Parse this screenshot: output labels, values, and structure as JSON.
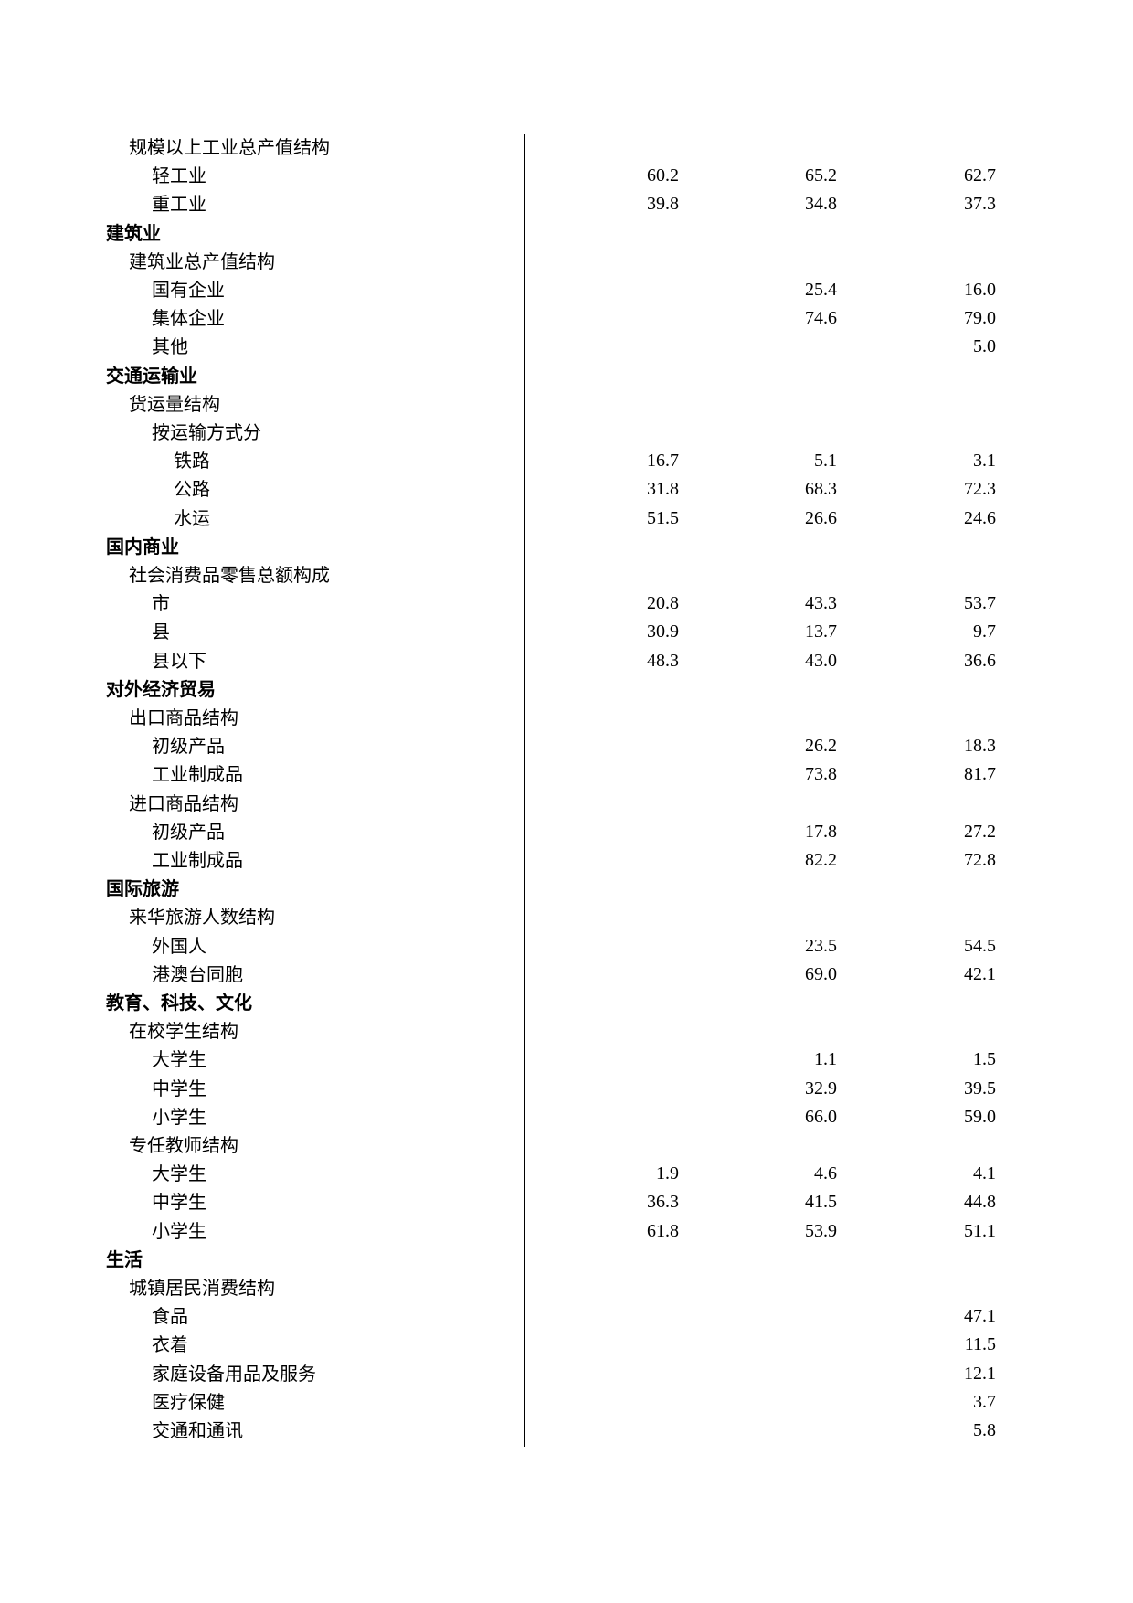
{
  "rows": [
    {
      "level": 1,
      "label": "规模以上工业总产值结构",
      "values": [
        "",
        "",
        ""
      ]
    },
    {
      "level": 2,
      "label": "轻工业",
      "values": [
        "60.2",
        "65.2",
        "62.7"
      ]
    },
    {
      "level": 2,
      "label": "重工业",
      "values": [
        "39.8",
        "34.8",
        "37.3"
      ]
    },
    {
      "level": 0,
      "label": "建筑业",
      "values": [
        "",
        "",
        ""
      ]
    },
    {
      "level": 1,
      "label": "建筑业总产值结构",
      "values": [
        "",
        "",
        ""
      ]
    },
    {
      "level": 2,
      "label": "国有企业",
      "values": [
        "",
        "25.4",
        "16.0"
      ]
    },
    {
      "level": 2,
      "label": "集体企业",
      "values": [
        "",
        "74.6",
        "79.0"
      ]
    },
    {
      "level": 2,
      "label": "其他",
      "values": [
        "",
        "",
        "5.0"
      ]
    },
    {
      "level": 0,
      "label": "交通运输业",
      "values": [
        "",
        "",
        ""
      ]
    },
    {
      "level": 1,
      "label": "货运量结构",
      "values": [
        "",
        "",
        ""
      ]
    },
    {
      "level": 2,
      "label": "按运输方式分",
      "values": [
        "",
        "",
        ""
      ]
    },
    {
      "level": 3,
      "label": "铁路",
      "values": [
        "16.7",
        "5.1",
        "3.1"
      ]
    },
    {
      "level": 3,
      "label": "公路",
      "values": [
        "31.8",
        "68.3",
        "72.3"
      ]
    },
    {
      "level": 3,
      "label": "水运",
      "values": [
        "51.5",
        "26.6",
        "24.6"
      ]
    },
    {
      "level": 0,
      "label": "国内商业",
      "values": [
        "",
        "",
        ""
      ]
    },
    {
      "level": 1,
      "label": "社会消费品零售总额构成",
      "values": [
        "",
        "",
        ""
      ]
    },
    {
      "level": 2,
      "label": "市",
      "values": [
        "20.8",
        "43.3",
        "53.7"
      ]
    },
    {
      "level": 2,
      "label": "县",
      "values": [
        "30.9",
        "13.7",
        "9.7"
      ]
    },
    {
      "level": 2,
      "label": "县以下",
      "values": [
        "48.3",
        "43.0",
        "36.6"
      ]
    },
    {
      "level": 0,
      "label": "对外经济贸易",
      "values": [
        "",
        "",
        ""
      ]
    },
    {
      "level": 1,
      "label": "出口商品结构",
      "values": [
        "",
        "",
        ""
      ]
    },
    {
      "level": 2,
      "label": "初级产品",
      "values": [
        "",
        "26.2",
        "18.3"
      ]
    },
    {
      "level": 2,
      "label": "工业制成品",
      "values": [
        "",
        "73.8",
        "81.7"
      ]
    },
    {
      "level": 1,
      "label": "进口商品结构",
      "values": [
        "",
        "",
        ""
      ]
    },
    {
      "level": 2,
      "label": "初级产品",
      "values": [
        "",
        "17.8",
        "27.2"
      ]
    },
    {
      "level": 2,
      "label": "工业制成品",
      "values": [
        "",
        "82.2",
        "72.8"
      ]
    },
    {
      "level": 0,
      "label": "国际旅游",
      "values": [
        "",
        "",
        ""
      ]
    },
    {
      "level": 1,
      "label": "来华旅游人数结构",
      "values": [
        "",
        "",
        ""
      ]
    },
    {
      "level": 2,
      "label": "外国人",
      "values": [
        "",
        "23.5",
        "54.5"
      ]
    },
    {
      "level": 2,
      "label": "港澳台同胞",
      "values": [
        "",
        "69.0",
        "42.1"
      ]
    },
    {
      "level": 0,
      "label": "教育、科技、文化",
      "values": [
        "",
        "",
        ""
      ]
    },
    {
      "level": 1,
      "label": "在校学生结构",
      "values": [
        "",
        "",
        ""
      ]
    },
    {
      "level": 2,
      "label": "大学生",
      "values": [
        "",
        "1.1",
        "1.5"
      ]
    },
    {
      "level": 2,
      "label": "中学生",
      "values": [
        "",
        "32.9",
        "39.5"
      ]
    },
    {
      "level": 2,
      "label": "小学生",
      "values": [
        "",
        "66.0",
        "59.0"
      ]
    },
    {
      "level": 1,
      "label": "专任教师结构",
      "values": [
        "",
        "",
        ""
      ]
    },
    {
      "level": 2,
      "label": "大学生",
      "values": [
        "1.9",
        "4.6",
        "4.1"
      ]
    },
    {
      "level": 2,
      "label": "中学生",
      "values": [
        "36.3",
        "41.5",
        "44.8"
      ]
    },
    {
      "level": 2,
      "label": "小学生",
      "values": [
        "61.8",
        "53.9",
        "51.1"
      ]
    },
    {
      "level": 0,
      "label": "生活",
      "values": [
        "",
        "",
        ""
      ]
    },
    {
      "level": 1,
      "label": "城镇居民消费结构",
      "values": [
        "",
        "",
        ""
      ]
    },
    {
      "level": 2,
      "label": "食品",
      "values": [
        "",
        "",
        "47.1"
      ]
    },
    {
      "level": 2,
      "label": "衣着",
      "values": [
        "",
        "",
        "11.5"
      ]
    },
    {
      "level": 2,
      "label": "家庭设备用品及服务",
      "values": [
        "",
        "",
        "12.1"
      ]
    },
    {
      "level": 2,
      "label": "医疗保健",
      "values": [
        "",
        "",
        "3.7"
      ]
    },
    {
      "level": 2,
      "label": "交通和通讯",
      "values": [
        "",
        "",
        "5.8"
      ]
    }
  ]
}
